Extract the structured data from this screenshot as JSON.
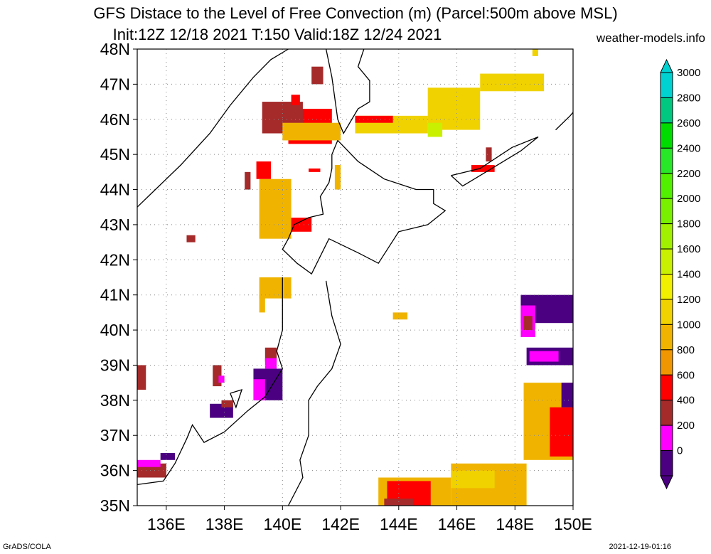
{
  "title": {
    "line1": "GFS Distace to the Level of Free Convection (m) (Parcel:500m above MSL)",
    "line2": "Init:12Z 12/18 2021 T:150 Valid:18Z 12/24 2021",
    "site": "weather-models.info"
  },
  "footer": {
    "left": "GrADS/COLA",
    "right": "2021-12-19-01:16"
  },
  "axes": {
    "lat_labels": [
      "48N",
      "47N",
      "46N",
      "45N",
      "44N",
      "43N",
      "42N",
      "41N",
      "40N",
      "39N",
      "38N",
      "37N",
      "36N",
      "35N"
    ],
    "lat_values": [
      48,
      47,
      46,
      45,
      44,
      43,
      42,
      41,
      40,
      39,
      38,
      37,
      36,
      35
    ],
    "lon_labels": [
      "136E",
      "138E",
      "140E",
      "142E",
      "144E",
      "146E",
      "148E",
      "150E"
    ],
    "lon_values": [
      136,
      138,
      140,
      142,
      144,
      146,
      148,
      150
    ],
    "lon_range": [
      135,
      150
    ],
    "lat_range": [
      35,
      48
    ]
  },
  "colorbar": {
    "labels": [
      "3000",
      "2800",
      "2600",
      "2400",
      "2200",
      "2000",
      "1800",
      "1600",
      "1400",
      "1200",
      "1000",
      "800",
      "600",
      "400",
      "200",
      "0"
    ],
    "colors": [
      "#00d2d2",
      "#00c880",
      "#00dc00",
      "#28e628",
      "#50f000",
      "#78f000",
      "#a0f000",
      "#c8f000",
      "#f0f000",
      "#f0d200",
      "#f0b400",
      "#f09600",
      "#ff0000",
      "#a52a2a",
      "#ff00ff",
      "#4b0082"
    ]
  },
  "fields": [
    {
      "lon": [
        140.2,
        141.7
      ],
      "lat": [
        45.3,
        46.3
      ],
      "color": "#ff0000"
    },
    {
      "lon": [
        139.3,
        140.7
      ],
      "lat": [
        45.6,
        46.5
      ],
      "color": "#a52a2a"
    },
    {
      "lon": [
        140.0,
        142.0
      ],
      "lat": [
        45.4,
        45.9
      ],
      "color": "#f0b400"
    },
    {
      "lon": [
        142.5,
        145.0
      ],
      "lat": [
        45.6,
        46.1
      ],
      "color": "#f0d200"
    },
    {
      "lon": [
        145.0,
        146.8
      ],
      "lat": [
        45.7,
        46.9
      ],
      "color": "#f0d200"
    },
    {
      "lon": [
        145.0,
        145.5
      ],
      "lat": [
        45.5,
        45.9
      ],
      "color": "#c8f000"
    },
    {
      "lon": [
        142.5,
        143.8
      ],
      "lat": [
        45.9,
        46.1
      ],
      "color": "#ff0000"
    },
    {
      "lon": [
        139.2,
        140.3
      ],
      "lat": [
        42.6,
        44.3
      ],
      "color": "#f0b400"
    },
    {
      "lon": [
        140.3,
        141.0
      ],
      "lat": [
        42.8,
        43.2
      ],
      "color": "#ff0000"
    },
    {
      "lon": [
        139.1,
        139.6
      ],
      "lat": [
        44.3,
        44.8
      ],
      "color": "#ff0000"
    },
    {
      "lon": [
        138.7,
        138.9
      ],
      "lat": [
        44.0,
        44.5
      ],
      "color": "#a52a2a"
    },
    {
      "lon": [
        140.9,
        141.3
      ],
      "lat": [
        44.5,
        44.6
      ],
      "color": "#ff0000"
    },
    {
      "lon": [
        141.8,
        142.0
      ],
      "lat": [
        44.0,
        44.7
      ],
      "color": "#f0b400"
    },
    {
      "lon": [
        141.0,
        141.4
      ],
      "lat": [
        47.0,
        47.5
      ],
      "color": "#a52a2a"
    },
    {
      "lon": [
        140.3,
        140.6
      ],
      "lat": [
        46.4,
        46.7
      ],
      "color": "#ff0000"
    },
    {
      "lon": [
        136.7,
        137.0
      ],
      "lat": [
        42.5,
        42.7
      ],
      "color": "#a52a2a"
    },
    {
      "lon": [
        139.2,
        140.3
      ],
      "lat": [
        40.9,
        41.5
      ],
      "color": "#f0b400"
    },
    {
      "lon": [
        139.2,
        139.4
      ],
      "lat": [
        40.5,
        41.0
      ],
      "color": "#f0b400"
    },
    {
      "lon": [
        143.8,
        144.3
      ],
      "lat": [
        40.3,
        40.5
      ],
      "color": "#f0b400"
    },
    {
      "lon": [
        146.8,
        149.0
      ],
      "lat": [
        46.8,
        47.3
      ],
      "color": "#f0d200"
    },
    {
      "lon": [
        148.6,
        148.8
      ],
      "lat": [
        47.8,
        48.0
      ],
      "color": "#f0d200"
    },
    {
      "lon": [
        146.5,
        147.3
      ],
      "lat": [
        44.5,
        44.7
      ],
      "color": "#ff0000"
    },
    {
      "lon": [
        147.0,
        147.2
      ],
      "lat": [
        44.8,
        45.2
      ],
      "color": "#a52a2a"
    },
    {
      "lon": [
        148.2,
        150.0
      ],
      "lat": [
        40.2,
        41.0
      ],
      "color": "#4b0082"
    },
    {
      "lon": [
        148.2,
        148.7
      ],
      "lat": [
        39.8,
        40.7
      ],
      "color": "#ff00ff"
    },
    {
      "lon": [
        148.3,
        148.6
      ],
      "lat": [
        40.0,
        40.4
      ],
      "color": "#a52a2a"
    },
    {
      "lon": [
        148.4,
        150.0
      ],
      "lat": [
        39.0,
        39.5
      ],
      "color": "#4b0082"
    },
    {
      "lon": [
        148.5,
        149.5
      ],
      "lat": [
        39.1,
        39.4
      ],
      "color": "#ff00ff"
    },
    {
      "lon": [
        148.3,
        150.0
      ],
      "lat": [
        36.3,
        38.5
      ],
      "color": "#f0b400"
    },
    {
      "lon": [
        149.2,
        150.0
      ],
      "lat": [
        36.4,
        37.8
      ],
      "color": "#ff0000"
    },
    {
      "lon": [
        149.6,
        150.0
      ],
      "lat": [
        37.8,
        38.5
      ],
      "color": "#4b0082"
    },
    {
      "lon": [
        143.3,
        145.8
      ],
      "lat": [
        35.0,
        35.8
      ],
      "color": "#f0b400"
    },
    {
      "lon": [
        143.6,
        145.1
      ],
      "lat": [
        35.0,
        35.7
      ],
      "color": "#ff0000"
    },
    {
      "lon": [
        143.5,
        144.5
      ],
      "lat": [
        35.0,
        35.2
      ],
      "color": "#a52a2a"
    },
    {
      "lon": [
        145.8,
        148.4
      ],
      "lat": [
        35.0,
        36.2
      ],
      "color": "#f0b400"
    },
    {
      "lon": [
        145.8,
        147.3
      ],
      "lat": [
        35.5,
        36.0
      ],
      "color": "#f0d200"
    },
    {
      "lon": [
        139.0,
        140.0
      ],
      "lat": [
        38.0,
        38.9
      ],
      "color": "#4b0082"
    },
    {
      "lon": [
        139.0,
        139.4
      ],
      "lat": [
        38.0,
        38.6
      ],
      "color": "#ff00ff"
    },
    {
      "lon": [
        139.4,
        139.8
      ],
      "lat": [
        39.1,
        39.5
      ],
      "color": "#a52a2a"
    },
    {
      "lon": [
        139.4,
        139.8
      ],
      "lat": [
        38.9,
        39.2
      ],
      "color": "#ff00ff"
    },
    {
      "lon": [
        137.5,
        138.3
      ],
      "lat": [
        37.5,
        37.9
      ],
      "color": "#4b0082"
    },
    {
      "lon": [
        137.9,
        138.3
      ],
      "lat": [
        37.8,
        38.0
      ],
      "color": "#a52a2a"
    },
    {
      "lon": [
        137.6,
        137.9
      ],
      "lat": [
        38.4,
        39.0
      ],
      "color": "#a52a2a"
    },
    {
      "lon": [
        137.8,
        138.0
      ],
      "lat": [
        38.5,
        38.7
      ],
      "color": "#ff00ff"
    },
    {
      "lon": [
        135.0,
        135.3
      ],
      "lat": [
        38.3,
        39.0
      ],
      "color": "#a52a2a"
    },
    {
      "lon": [
        135.0,
        136.0
      ],
      "lat": [
        35.8,
        36.2
      ],
      "color": "#a52a2a"
    },
    {
      "lon": [
        135.0,
        135.8
      ],
      "lat": [
        36.1,
        36.3
      ],
      "color": "#ff00ff"
    },
    {
      "lon": [
        135.8,
        136.3
      ],
      "lat": [
        36.3,
        36.5
      ],
      "color": "#4b0082"
    }
  ],
  "coastlines": [
    [
      [
        135.0,
        43.5
      ],
      [
        135.5,
        43.9
      ],
      [
        136.5,
        44.7
      ],
      [
        137.5,
        45.6
      ],
      [
        138.2,
        46.4
      ],
      [
        139.0,
        47.2
      ],
      [
        139.6,
        47.7
      ],
      [
        140.2,
        48.0
      ]
    ],
    [
      [
        141.5,
        48.0
      ],
      [
        141.7,
        47.2
      ],
      [
        141.8,
        46.6
      ],
      [
        141.9,
        46.0
      ],
      [
        142.1,
        45.6
      ],
      [
        142.6,
        46.3
      ],
      [
        143.0,
        46.5
      ],
      [
        143.0,
        47.1
      ],
      [
        142.6,
        47.5
      ],
      [
        142.8,
        48.0
      ]
    ],
    [
      [
        141.9,
        45.4
      ],
      [
        141.7,
        45.0
      ],
      [
        141.7,
        44.6
      ],
      [
        141.6,
        44.2
      ],
      [
        141.3,
        43.8
      ],
      [
        141.4,
        43.3
      ],
      [
        140.9,
        43.2
      ],
      [
        140.4,
        43.0
      ],
      [
        140.2,
        42.6
      ],
      [
        140.0,
        42.3
      ],
      [
        140.5,
        41.9
      ],
      [
        141.0,
        41.6
      ],
      [
        141.6,
        42.6
      ],
      [
        142.6,
        42.2
      ],
      [
        143.3,
        41.9
      ],
      [
        144.0,
        42.8
      ],
      [
        145.0,
        43.0
      ],
      [
        145.6,
        43.4
      ],
      [
        145.2,
        43.6
      ],
      [
        145.2,
        44.0
      ],
      [
        144.6,
        44.0
      ],
      [
        143.5,
        44.3
      ],
      [
        142.6,
        44.8
      ],
      [
        141.9,
        45.4
      ]
    ],
    [
      [
        140.0,
        41.5
      ],
      [
        140.0,
        40.7
      ],
      [
        140.0,
        40.0
      ],
      [
        139.8,
        39.4
      ],
      [
        140.0,
        38.9
      ],
      [
        139.4,
        38.1
      ],
      [
        138.8,
        37.7
      ],
      [
        138.0,
        37.1
      ],
      [
        137.3,
        36.8
      ],
      [
        136.9,
        37.3
      ],
      [
        136.7,
        36.9
      ],
      [
        136.3,
        36.2
      ],
      [
        135.9,
        35.7
      ],
      [
        135.0,
        35.6
      ]
    ],
    [
      [
        141.5,
        41.4
      ],
      [
        141.7,
        40.4
      ],
      [
        142.0,
        39.6
      ],
      [
        141.7,
        38.9
      ],
      [
        141.2,
        38.4
      ],
      [
        140.9,
        38.0
      ],
      [
        140.9,
        37.0
      ],
      [
        140.6,
        36.3
      ],
      [
        140.7,
        35.8
      ],
      [
        140.2,
        35.0
      ]
    ],
    [
      [
        145.8,
        44.4
      ],
      [
        146.8,
        44.6
      ],
      [
        147.9,
        45.2
      ],
      [
        148.8,
        45.5
      ],
      [
        148.2,
        45.1
      ],
      [
        147.2,
        44.6
      ],
      [
        146.2,
        44.1
      ],
      [
        145.8,
        44.4
      ]
    ],
    [
      [
        149.4,
        45.7
      ],
      [
        149.9,
        46.1
      ],
      [
        150.0,
        46.2
      ]
    ],
    [
      [
        138.2,
        38.2
      ],
      [
        138.6,
        38.3
      ],
      [
        138.4,
        37.8
      ],
      [
        138.2,
        38.2
      ]
    ]
  ]
}
